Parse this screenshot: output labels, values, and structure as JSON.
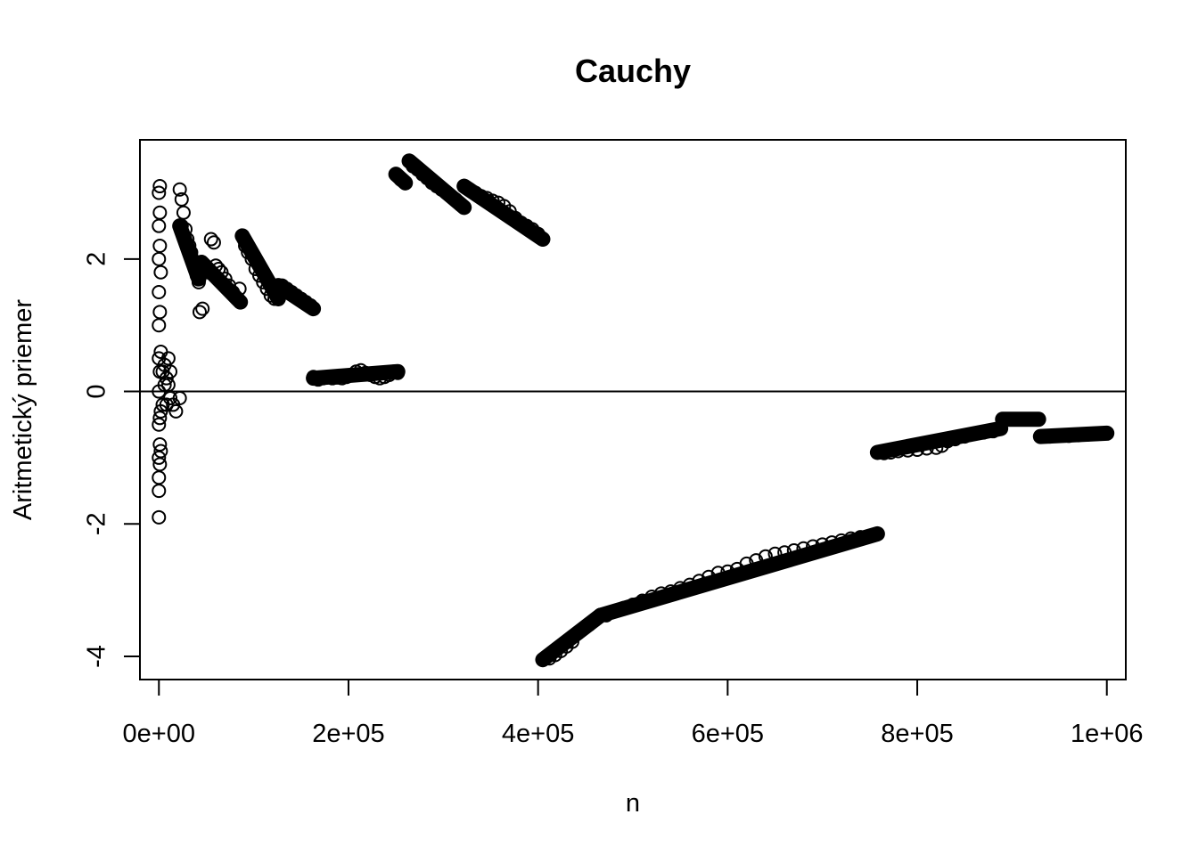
{
  "chart_data": {
    "type": "scatter",
    "title": "Cauchy",
    "xlabel": "n",
    "ylabel": "Aritmetický priemer",
    "xlim": [
      -20000,
      1020000
    ],
    "ylim": [
      -4.35,
      3.8
    ],
    "x_ticks": [
      0,
      200000,
      400000,
      600000,
      800000,
      1000000
    ],
    "x_tick_labels": [
      "0e+00",
      "2e+05",
      "4e+05",
      "6e+05",
      "8e+05",
      "1e+06"
    ],
    "y_ticks": [
      -4,
      -2,
      0,
      2
    ],
    "y_tick_labels": [
      "-4",
      "-2",
      "0",
      "2"
    ],
    "reference_line_y": 0,
    "marker": "open-circle",
    "grid": false,
    "points": [
      [
        0,
        3.0
      ],
      [
        0,
        2.5
      ],
      [
        0,
        2.0
      ],
      [
        0,
        1.5
      ],
      [
        0,
        1.0
      ],
      [
        0,
        0.5
      ],
      [
        0,
        0.0
      ],
      [
        0,
        -0.5
      ],
      [
        0,
        -1.0
      ],
      [
        0,
        -1.3
      ],
      [
        0,
        -1.5
      ],
      [
        0,
        -1.9
      ],
      [
        1000,
        3.1
      ],
      [
        1000,
        2.7
      ],
      [
        1000,
        2.2
      ],
      [
        1000,
        1.2
      ],
      [
        1000,
        0.3
      ],
      [
        1000,
        -0.4
      ],
      [
        1000,
        -0.8
      ],
      [
        1000,
        -1.1
      ],
      [
        2000,
        1.8
      ],
      [
        2000,
        0.6
      ],
      [
        2000,
        -0.3
      ],
      [
        2000,
        -0.9
      ],
      [
        4000,
        0.3
      ],
      [
        4000,
        -0.2
      ],
      [
        6000,
        0.4
      ],
      [
        6000,
        0.1
      ],
      [
        8000,
        0.2
      ],
      [
        8000,
        -0.2
      ],
      [
        10000,
        0.5
      ],
      [
        10000,
        0.1
      ],
      [
        12000,
        0.3
      ],
      [
        12000,
        -0.1
      ],
      [
        15000,
        -0.2
      ],
      [
        18000,
        -0.3
      ],
      [
        22000,
        -0.1
      ],
      [
        22000,
        3.05
      ],
      [
        24000,
        2.9
      ],
      [
        24000,
        2.5
      ],
      [
        26000,
        2.7
      ],
      [
        28000,
        2.45
      ],
      [
        30000,
        2.3
      ],
      [
        32000,
        2.2
      ],
      [
        34000,
        2.1
      ],
      [
        36000,
        1.95
      ],
      [
        38000,
        1.85
      ],
      [
        40000,
        1.75
      ],
      [
        42000,
        1.65
      ],
      [
        45000,
        1.95
      ],
      [
        48000,
        1.85
      ],
      [
        43000,
        1.2
      ],
      [
        46000,
        1.25
      ],
      [
        52000,
        1.8
      ],
      [
        55000,
        2.3
      ],
      [
        58000,
        2.25
      ],
      [
        60000,
        1.9
      ],
      [
        63000,
        1.85
      ],
      [
        66000,
        1.8
      ],
      [
        70000,
        1.7
      ],
      [
        74000,
        1.6
      ],
      [
        78000,
        1.5
      ],
      [
        82000,
        1.4
      ],
      [
        86000,
        1.35
      ],
      [
        85000,
        1.55
      ],
      [
        88000,
        2.35
      ],
      [
        91000,
        2.2
      ],
      [
        94000,
        2.1
      ],
      [
        98000,
        2.0
      ],
      [
        102000,
        1.85
      ],
      [
        106000,
        1.75
      ],
      [
        110000,
        1.65
      ],
      [
        114000,
        1.55
      ],
      [
        118000,
        1.45
      ],
      [
        122000,
        1.4
      ],
      [
        126000,
        1.4
      ],
      [
        130000,
        1.6
      ],
      [
        135000,
        1.55
      ],
      [
        140000,
        1.5
      ],
      [
        145000,
        1.45
      ],
      [
        150000,
        1.4
      ],
      [
        155000,
        1.35
      ],
      [
        160000,
        1.3
      ],
      [
        163000,
        1.25
      ],
      [
        163000,
        0.22
      ],
      [
        168000,
        0.18
      ],
      [
        173000,
        0.2
      ],
      [
        178000,
        0.22
      ],
      [
        183000,
        0.2
      ],
      [
        188000,
        0.21
      ],
      [
        193000,
        0.2
      ],
      [
        198000,
        0.22
      ],
      [
        203000,
        0.25
      ],
      [
        208000,
        0.3
      ],
      [
        213000,
        0.32
      ],
      [
        218000,
        0.28
      ],
      [
        223000,
        0.25
      ],
      [
        228000,
        0.22
      ],
      [
        233000,
        0.2
      ],
      [
        238000,
        0.22
      ],
      [
        243000,
        0.25
      ],
      [
        248000,
        0.3
      ],
      [
        252000,
        0.28
      ],
      [
        250000,
        3.28
      ],
      [
        255000,
        3.2
      ],
      [
        260000,
        3.15
      ],
      [
        264000,
        3.48
      ],
      [
        268000,
        3.4
      ],
      [
        273000,
        3.35
      ],
      [
        278000,
        3.28
      ],
      [
        283000,
        3.22
      ],
      [
        288000,
        3.15
      ],
      [
        293000,
        3.1
      ],
      [
        298000,
        3.05
      ],
      [
        303000,
        3.0
      ],
      [
        308000,
        2.95
      ],
      [
        313000,
        2.9
      ],
      [
        318000,
        2.82
      ],
      [
        322000,
        2.78
      ],
      [
        322000,
        3.1
      ],
      [
        328000,
        3.05
      ],
      [
        334000,
        3.0
      ],
      [
        340000,
        2.95
      ],
      [
        346000,
        2.92
      ],
      [
        352000,
        2.88
      ],
      [
        358000,
        2.85
      ],
      [
        364000,
        2.8
      ],
      [
        370000,
        2.72
      ],
      [
        376000,
        2.62
      ],
      [
        382000,
        2.55
      ],
      [
        388000,
        2.5
      ],
      [
        394000,
        2.45
      ],
      [
        400000,
        2.38
      ],
      [
        405000,
        2.3
      ],
      [
        405000,
        -4.05
      ],
      [
        412000,
        -4.03
      ],
      [
        418000,
        -3.98
      ],
      [
        424000,
        -3.92
      ],
      [
        430000,
        -3.85
      ],
      [
        436000,
        -3.78
      ],
      [
        442000,
        -3.65
      ],
      [
        448000,
        -3.58
      ],
      [
        454000,
        -3.52
      ],
      [
        460000,
        -3.45
      ],
      [
        466000,
        -3.38
      ],
      [
        472000,
        -3.38
      ],
      [
        480000,
        -3.32
      ],
      [
        490000,
        -3.27
      ],
      [
        500000,
        -3.22
      ],
      [
        510000,
        -3.16
      ],
      [
        520000,
        -3.1
      ],
      [
        530000,
        -3.05
      ],
      [
        540000,
        -3.02
      ],
      [
        550000,
        -2.97
      ],
      [
        560000,
        -2.92
      ],
      [
        570000,
        -2.86
      ],
      [
        580000,
        -2.8
      ],
      [
        590000,
        -2.74
      ],
      [
        600000,
        -2.72
      ],
      [
        610000,
        -2.68
      ],
      [
        620000,
        -2.6
      ],
      [
        630000,
        -2.55
      ],
      [
        640000,
        -2.49
      ],
      [
        650000,
        -2.45
      ],
      [
        660000,
        -2.43
      ],
      [
        670000,
        -2.4
      ],
      [
        680000,
        -2.37
      ],
      [
        690000,
        -2.34
      ],
      [
        700000,
        -2.31
      ],
      [
        710000,
        -2.28
      ],
      [
        720000,
        -2.25
      ],
      [
        730000,
        -2.22
      ],
      [
        740000,
        -2.2
      ],
      [
        750000,
        -2.18
      ],
      [
        758000,
        -2.15
      ],
      [
        758000,
        -0.92
      ],
      [
        765000,
        -0.93
      ],
      [
        772000,
        -0.92
      ],
      [
        780000,
        -0.9
      ],
      [
        790000,
        -0.89
      ],
      [
        800000,
        -0.88
      ],
      [
        810000,
        -0.86
      ],
      [
        820000,
        -0.85
      ],
      [
        826000,
        -0.82
      ],
      [
        832000,
        -0.75
      ],
      [
        840000,
        -0.72
      ],
      [
        850000,
        -0.68
      ],
      [
        860000,
        -0.64
      ],
      [
        870000,
        -0.62
      ],
      [
        880000,
        -0.6
      ],
      [
        888000,
        -0.56
      ],
      [
        892000,
        -0.42
      ],
      [
        900000,
        -0.42
      ],
      [
        910000,
        -0.42
      ],
      [
        920000,
        -0.42
      ],
      [
        928000,
        -0.42
      ],
      [
        930000,
        -0.68
      ],
      [
        940000,
        -0.68
      ],
      [
        950000,
        -0.67
      ],
      [
        960000,
        -0.67
      ],
      [
        970000,
        -0.66
      ],
      [
        980000,
        -0.65
      ],
      [
        990000,
        -0.64
      ],
      [
        1000000,
        -0.63
      ]
    ],
    "segments": [
      {
        "x": [
          22000,
          42000
        ],
        "y": [
          2.5,
          1.7
        ]
      },
      {
        "x": [
          45000,
          86000
        ],
        "y": [
          1.95,
          1.35
        ]
      },
      {
        "x": [
          88000,
          126000
        ],
        "y": [
          2.35,
          1.4
        ]
      },
      {
        "x": [
          126000,
          163000
        ],
        "y": [
          1.6,
          1.25
        ]
      },
      {
        "x": [
          163000,
          252000
        ],
        "y": [
          0.2,
          0.3
        ]
      },
      {
        "x": [
          250000,
          260000
        ],
        "y": [
          3.28,
          3.15
        ]
      },
      {
        "x": [
          264000,
          322000
        ],
        "y": [
          3.48,
          2.78
        ]
      },
      {
        "x": [
          322000,
          405000
        ],
        "y": [
          3.1,
          2.3
        ]
      },
      {
        "x": [
          405000,
          466000
        ],
        "y": [
          -4.05,
          -3.38
        ]
      },
      {
        "x": [
          466000,
          758000
        ],
        "y": [
          -3.38,
          -2.15
        ]
      },
      {
        "x": [
          758000,
          888000
        ],
        "y": [
          -0.92,
          -0.56
        ]
      },
      {
        "x": [
          890000,
          928000
        ],
        "y": [
          -0.42,
          -0.42
        ]
      },
      {
        "x": [
          930000,
          1000000
        ],
        "y": [
          -0.68,
          -0.63
        ]
      }
    ]
  }
}
